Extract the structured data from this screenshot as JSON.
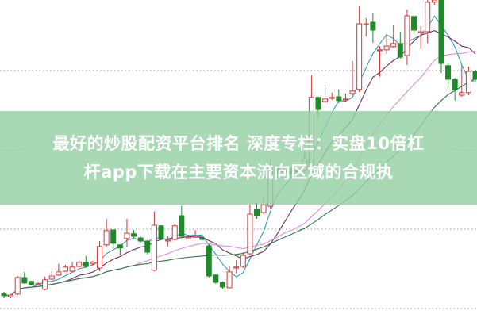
{
  "title": {
    "line1": "最好的炒股配资平台排名 深度专栏：实盘10倍杠",
    "line2": "杆app下载在主要资本流向区域的合规执"
  },
  "colors": {
    "up": "#d0383a",
    "down": "#1f8a2a",
    "banner": "#96d0a5",
    "grid": "#999999",
    "ma_lines": [
      "#3a98b0",
      "#6a2d6a",
      "#e48ae4",
      "#2f7a45"
    ]
  },
  "chart_data": {
    "type": "candlestick",
    "title": "",
    "xlabel": "",
    "ylabel": "",
    "ylim": [
      0,
      100
    ],
    "grid": "horizontal dotted",
    "legend": "none",
    "ohlc": [
      [
        7.5,
        6.8,
        8,
        6
      ],
      [
        6.5,
        7,
        7.3,
        6
      ],
      [
        7.3,
        12.5,
        13,
        7
      ],
      [
        12.5,
        10.8,
        14.3,
        10.5
      ],
      [
        11.3,
        10.3,
        11.5,
        10
      ],
      [
        10.5,
        10.6,
        11,
        10.2
      ],
      [
        8.8,
        11.8,
        12.8,
        8.5
      ],
      [
        12,
        13,
        14.5,
        11.8
      ],
      [
        13.3,
        14.3,
        16.8,
        13
      ],
      [
        14.5,
        15.8,
        16.5,
        14.3
      ],
      [
        14.5,
        15.8,
        17.5,
        14.3
      ],
      [
        16,
        17.3,
        18,
        15.8
      ],
      [
        17.3,
        16,
        19.3,
        15.5
      ],
      [
        16.8,
        17.3,
        17.8,
        16.5
      ],
      [
        15.5,
        22.3,
        24,
        14.5
      ],
      [
        22.8,
        27.3,
        31,
        22.3
      ],
      [
        27.5,
        23.3,
        27.8,
        21.8
      ],
      [
        22.8,
        21.8,
        23,
        19.5
      ],
      [
        24.8,
        26.5,
        31,
        22
      ],
      [
        26.3,
        25.5,
        27.5,
        25
      ],
      [
        25,
        24,
        25.5,
        23.5
      ],
      [
        24,
        20.5,
        24.3,
        19.8
      ],
      [
        14.8,
        29,
        33.3,
        14.5
      ],
      [
        28.8,
        24.8,
        29,
        24.5
      ],
      [
        24.3,
        24.3,
        25.5,
        22.3
      ],
      [
        24.5,
        28.8,
        29.5,
        24.3
      ],
      [
        32,
        25.5,
        35,
        25.3
      ],
      [
        25.3,
        25.3,
        26,
        25
      ],
      [
        25.5,
        25.5,
        27.5,
        25.3
      ],
      [
        25,
        24.5,
        25.3,
        24.3
      ],
      [
        22.5,
        13,
        23,
        12.5
      ],
      [
        13.3,
        11,
        13.5,
        10.5
      ],
      [
        11,
        9.5,
        11.3,
        9
      ],
      [
        9.3,
        14.3,
        16,
        9
      ],
      [
        15.8,
        15.8,
        18,
        13.8
      ],
      [
        16,
        19.5,
        20.5,
        15.5
      ],
      [
        20,
        32.5,
        35.5,
        19.5
      ],
      [
        34,
        32,
        36,
        31
      ],
      [
        33,
        35.5,
        38,
        32.5
      ],
      [
        35,
        47.5,
        50,
        34
      ],
      [
        47,
        45.5,
        48,
        44
      ],
      [
        46,
        46,
        47.5,
        45
      ],
      [
        46.8,
        45,
        47.5,
        44
      ],
      [
        46,
        46.2,
        47,
        45
      ],
      [
        46.3,
        50,
        52.5,
        45.5
      ],
      [
        47,
        69.3,
        76.3,
        46.5
      ],
      [
        69.3,
        65.5,
        69.5,
        62.5
      ],
      [
        68,
        68.8,
        73.3,
        67.5
      ],
      [
        69.3,
        69.3,
        70.8,
        68.5
      ],
      [
        69.5,
        68.3,
        71.8,
        67.5
      ],
      [
        68.8,
        68.8,
        70.5,
        68
      ],
      [
        70.5,
        71.3,
        80.8,
        70
      ],
      [
        71.8,
        92.5,
        98,
        71
      ],
      [
        92.5,
        92.5,
        94.3,
        88.5
      ],
      [
        93,
        90.5,
        96,
        86.5
      ],
      [
        84.3,
        84.3,
        85.5,
        75.8
      ],
      [
        84.3,
        85.5,
        89.3,
        83
      ],
      [
        85.3,
        86.3,
        92,
        85
      ],
      [
        86.3,
        82,
        90,
        81.5
      ],
      [
        82.5,
        95,
        97,
        79.5
      ],
      [
        94.8,
        90.5,
        95.5,
        89
      ],
      [
        90,
        90,
        91.8,
        84.5
      ],
      [
        90,
        99.3,
        100,
        86.3
      ],
      [
        99.3,
        100,
        100,
        98.5
      ],
      [
        100,
        80,
        100,
        77
      ],
      [
        79.3,
        75,
        80,
        72.5
      ],
      [
        75,
        71.8,
        75.5,
        68.3
      ],
      [
        70,
        70.8,
        79.3,
        69.5
      ],
      [
        70.8,
        77.5,
        79,
        70
      ],
      [
        77.5,
        75,
        78,
        74
      ]
    ]
  }
}
